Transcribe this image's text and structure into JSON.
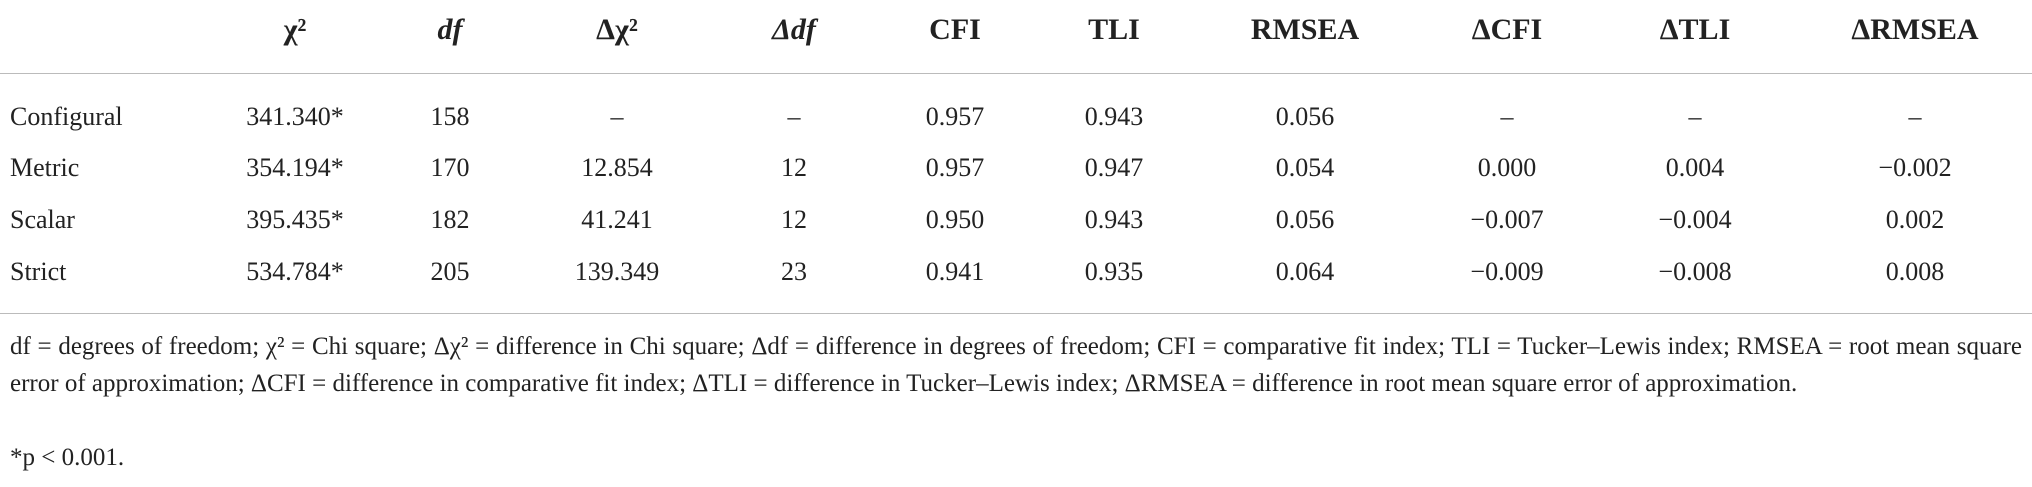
{
  "table": {
    "header": [
      "χ²",
      "df",
      "Δχ²",
      "Δdf",
      "CFI",
      "TLI",
      "RMSEA",
      "ΔCFI",
      "ΔTLI",
      "ΔRMSEA"
    ],
    "rows": [
      [
        "Configural",
        "341.340*",
        "158",
        "–",
        "–",
        "0.957",
        "0.943",
        "0.056",
        "–",
        "–",
        "–"
      ],
      [
        "Metric",
        "354.194*",
        "170",
        "12.854",
        "12",
        "0.957",
        "0.947",
        "0.054",
        "0.000",
        "0.004",
        "−0.002"
      ],
      [
        "Scalar",
        "395.435*",
        "182",
        "41.241",
        "12",
        "0.950",
        "0.943",
        "0.056",
        "−0.007",
        "−0.004",
        "0.002"
      ],
      [
        "Strict",
        "534.784*",
        "205",
        "139.349",
        "23",
        "0.941",
        "0.935",
        "0.064",
        "−0.009",
        "−0.008",
        "0.008"
      ]
    ]
  },
  "footnote": {
    "definitions": "df = degrees of freedom; χ² = Chi square; Δχ² = difference in Chi square; Δdf = difference in degrees of freedom; CFI = comparative fit index; TLI = Tucker–Lewis index; RMSEA = root mean square error of approximation; ΔCFI = difference in comparative fit index; ΔTLI = difference in Tucker–Lewis index; ΔRMSEA = difference in root mean square error of approximation.",
    "significance": "*p < 0.001."
  }
}
